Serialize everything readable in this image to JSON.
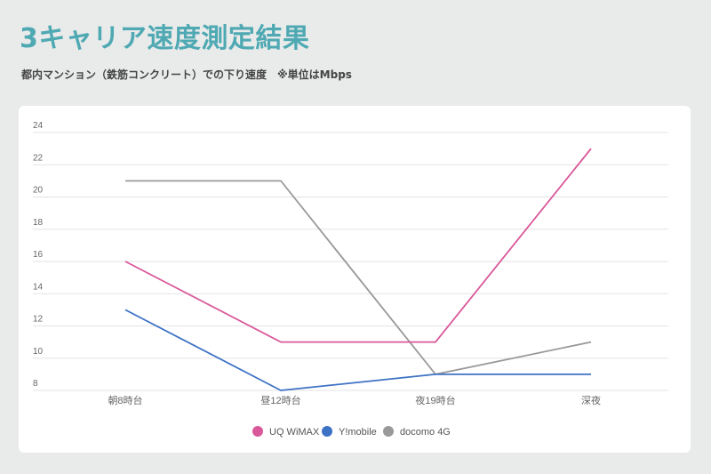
{
  "header": {
    "title": "3キャリア速度測定結果",
    "subtitle": "都内マンション（鉄筋コンクリート）での下り速度　※単位はMbps"
  },
  "colors": {
    "title": "#4fa9b3",
    "uq": "#d9589a",
    "ymobile": "#3d72c4",
    "docomo": "#999999"
  },
  "chart_data": {
    "type": "line",
    "title": "3キャリア速度測定結果",
    "subtitle": "都内マンション（鉄筋コンクリート）での下り速度 ※単位はMbps",
    "categories": [
      "朝8時台",
      "昼12時台",
      "夜19時台",
      "深夜"
    ],
    "series": [
      {
        "name": "UQ WiMAX",
        "color": "#d9589a",
        "values": [
          16,
          11,
          11,
          23
        ]
      },
      {
        "name": "Y!mobile",
        "color": "#3d72c4",
        "values": [
          13,
          8,
          9,
          9
        ]
      },
      {
        "name": "docomo 4G",
        "color": "#999999",
        "values": [
          21,
          21,
          9,
          11
        ]
      }
    ],
    "xlabel": "",
    "ylabel": "",
    "ylim": [
      8,
      24
    ],
    "yticks": [
      8,
      10,
      12,
      14,
      16,
      18,
      20,
      22,
      24
    ],
    "grid": true,
    "legend_position": "bottom"
  }
}
